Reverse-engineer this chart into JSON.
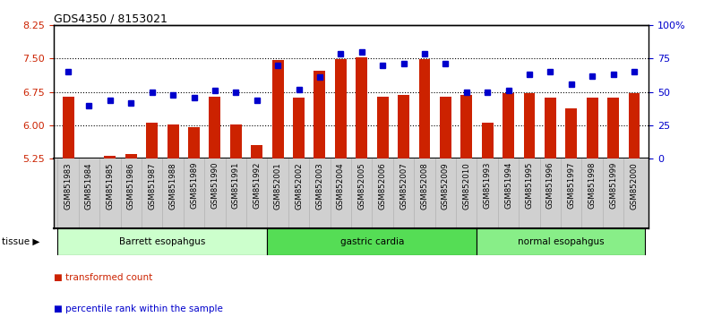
{
  "title": "GDS4350 / 8153021",
  "samples": [
    "GSM851983",
    "GSM851984",
    "GSM851985",
    "GSM851986",
    "GSM851987",
    "GSM851988",
    "GSM851989",
    "GSM851990",
    "GSM851991",
    "GSM851992",
    "GSM852001",
    "GSM852002",
    "GSM852003",
    "GSM852004",
    "GSM852005",
    "GSM852006",
    "GSM852007",
    "GSM852008",
    "GSM852009",
    "GSM852010",
    "GSM851993",
    "GSM851994",
    "GSM851995",
    "GSM851996",
    "GSM851997",
    "GSM851998",
    "GSM851999",
    "GSM852000"
  ],
  "bar_values": [
    6.65,
    5.22,
    5.31,
    5.36,
    6.05,
    6.02,
    5.95,
    6.65,
    6.02,
    5.56,
    7.47,
    6.62,
    7.22,
    7.48,
    7.52,
    6.65,
    6.68,
    7.48,
    6.65,
    6.68,
    6.05,
    6.72,
    6.72,
    6.62,
    6.38,
    6.62,
    6.62,
    6.72
  ],
  "dot_values": [
    65,
    40,
    44,
    42,
    50,
    48,
    46,
    51,
    50,
    44,
    70,
    52,
    61,
    79,
    80,
    70,
    71,
    79,
    71,
    50,
    50,
    51,
    63,
    65,
    56,
    62,
    63,
    65
  ],
  "groups": [
    {
      "label": "Barrett esopahgus",
      "start": 0,
      "end": 10,
      "color": "#ccffcc"
    },
    {
      "label": "gastric cardia",
      "start": 10,
      "end": 20,
      "color": "#55dd55"
    },
    {
      "label": "normal esopahgus",
      "start": 20,
      "end": 28,
      "color": "#88ee88"
    }
  ],
  "ylim_left": [
    5.25,
    8.25
  ],
  "ylim_right": [
    0,
    100
  ],
  "yticks_left": [
    5.25,
    6.0,
    6.75,
    7.5,
    8.25
  ],
  "yticks_right": [
    0,
    25,
    50,
    75,
    100
  ],
  "ytick_labels_right": [
    "0",
    "25",
    "50",
    "75",
    "100%"
  ],
  "bar_color": "#cc2200",
  "dot_color": "#0000cc",
  "background_color": "#ffffff",
  "legend_bar": "transformed count",
  "legend_dot": "percentile rank within the sample",
  "tissue_label": "tissue",
  "xlabel_color": "#cc2200",
  "ylabel_right_color": "#0000cc",
  "xtick_bg": "#d0d0d0"
}
